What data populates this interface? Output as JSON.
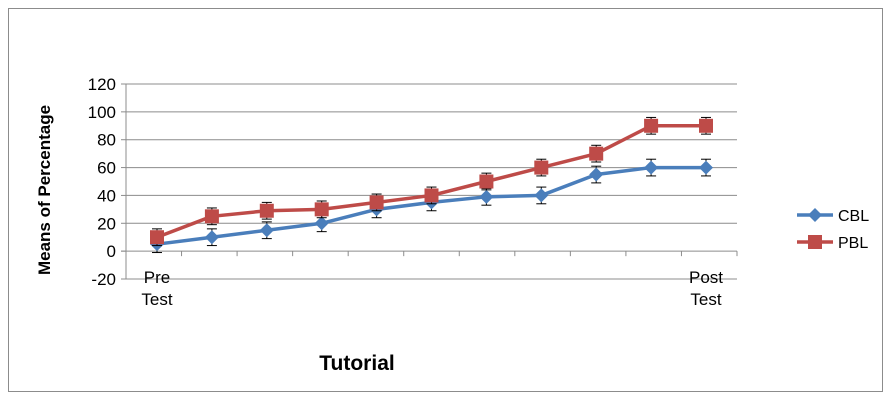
{
  "chart_data": {
    "type": "line",
    "title": "",
    "xlabel": "Tutorial",
    "ylabel": "Means of Percentage",
    "ylim": [
      -20,
      120
    ],
    "yticks": [
      -20,
      0,
      20,
      40,
      60,
      80,
      100,
      120
    ],
    "x": [
      1,
      2,
      3,
      4,
      5,
      6,
      7,
      8,
      9,
      10,
      11
    ],
    "x_tick_labels": [
      {
        "index": 0,
        "lines": [
          "Pre",
          "Test"
        ]
      },
      {
        "index": 10,
        "lines": [
          "Post",
          "Test"
        ]
      }
    ],
    "grid": "horizontal",
    "legend_position": "right",
    "error_bar": 6,
    "series": [
      {
        "name": "CBL",
        "color": "#4a7ebb",
        "marker": "diamond",
        "values": [
          5,
          10,
          15,
          20,
          30,
          35,
          39,
          40,
          55,
          60,
          60
        ]
      },
      {
        "name": "PBL",
        "color": "#be4b48",
        "marker": "square",
        "values": [
          10,
          25,
          29,
          30,
          35,
          40,
          50,
          60,
          70,
          90,
          90
        ]
      }
    ]
  }
}
